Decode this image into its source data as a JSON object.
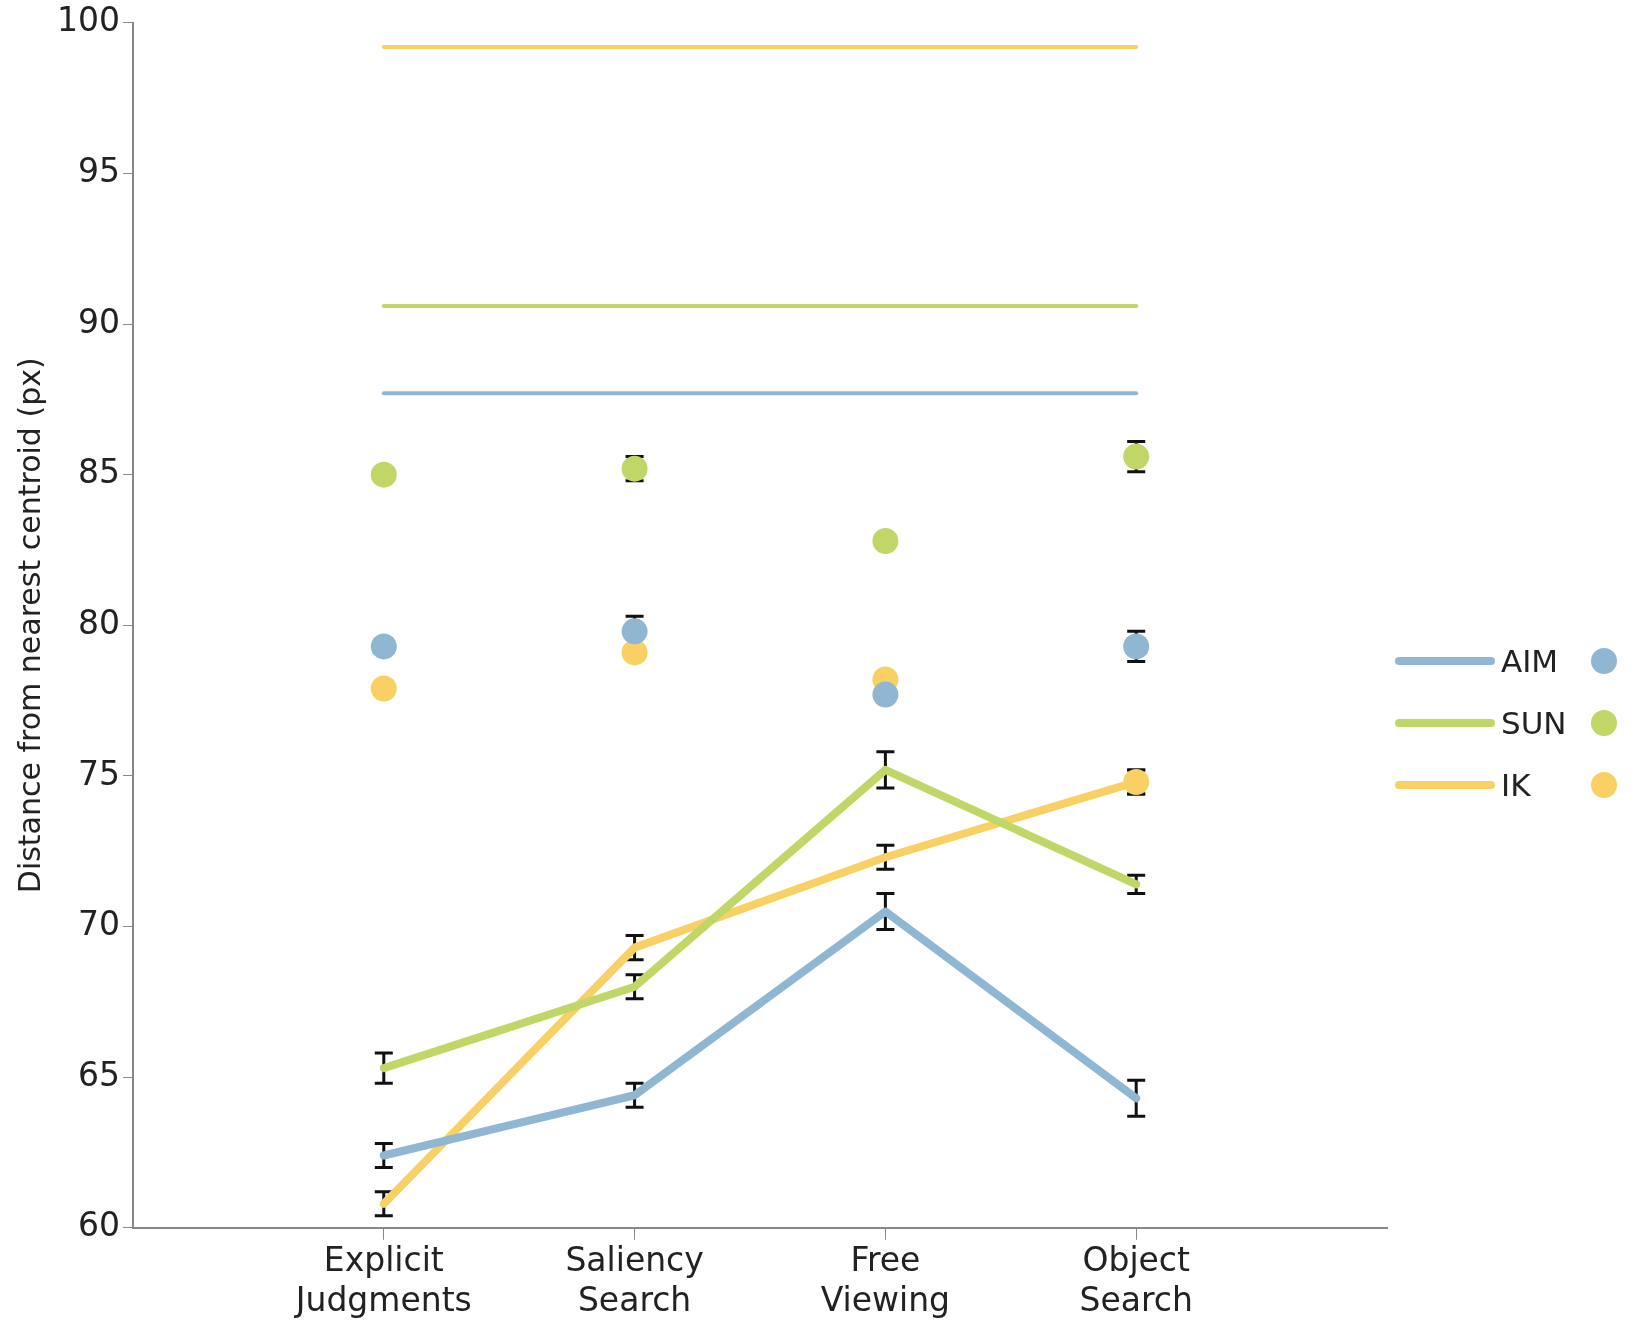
{
  "chart_data": {
    "type": "line",
    "ylabel": "Distance from nearest centroid (px)",
    "categories": [
      "Explicit Judgments",
      "Saliency Search",
      "Free Viewing",
      "Object Search"
    ],
    "ylim": [
      60,
      100
    ],
    "yticks": [
      60,
      65,
      70,
      75,
      80,
      85,
      90,
      95,
      100
    ],
    "grid": false,
    "legend": "right",
    "marker": "none",
    "series": [
      {
        "color": "#f8d063",
        "values": [
          99.2,
          99.2,
          99.2,
          99.2
        ]
      },
      {
        "color": "#c0d767",
        "values": [
          90.6,
          90.6,
          90.6,
          90.6
        ]
      },
      {
        "color": "#8fb7d3",
        "values": [
          87.7,
          87.7,
          87.7,
          87.7
        ]
      },
      {
        "type": "scatter",
        "marker": "circle",
        "color": "#8fb7d3",
        "values": [
          79.3,
          79.8,
          77.7,
          79.3
        ],
        "errors": [
          null,
          0.5,
          null,
          0.5
        ]
      },
      {
        "type": "scatter",
        "marker": "circle",
        "color": "#c0d767",
        "values": [
          85.0,
          85.2,
          82.8,
          85.6
        ],
        "errors": [
          null,
          0.4,
          null,
          0.5
        ]
      },
      {
        "type": "scatter",
        "marker": "circle",
        "color": "#f8d063",
        "values": [
          77.9,
          79.1,
          78.2,
          74.8
        ],
        "errors": [
          null,
          null,
          null,
          0.4
        ]
      },
      {
        "name": "AIM",
        "color": "#8fb7d3",
        "values": [
          62.4,
          64.4,
          70.5,
          64.3
        ],
        "errors": [
          0.4,
          0.4,
          0.6,
          0.6
        ]
      },
      {
        "name": "SUN",
        "color": "#c0d767",
        "values": [
          65.3,
          68.0,
          75.2,
          71.4
        ],
        "errors": [
          0.5,
          0.4,
          0.6,
          0.3
        ]
      },
      {
        "name": "IK",
        "color": "#f8d063",
        "values": [
          60.8,
          69.3,
          72.3,
          74.8
        ],
        "errors": [
          0.4,
          0.4,
          0.4,
          0.4
        ]
      }
    ]
  }
}
